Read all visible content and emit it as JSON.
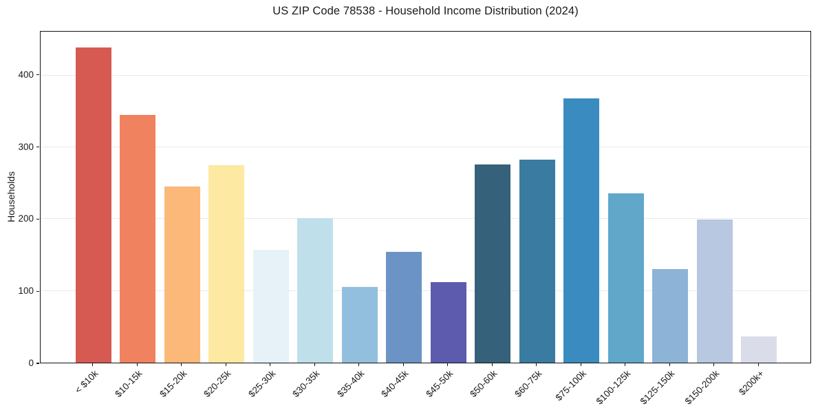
{
  "title": "US ZIP Code 78538 - Household Income Distribution (2024)",
  "chart_data": {
    "type": "bar",
    "title": "US ZIP Code 78538 - Household Income Distribution (2024)",
    "xlabel": "",
    "ylabel": "Households",
    "categories": [
      "< $10k",
      "$10-15k",
      "$15-20k",
      "$20-25k",
      "$25-30k",
      "$30-35k",
      "$35-40k",
      "$40-45k",
      "$45-50k",
      "$50-60k",
      "$60-75k",
      "$75-100k",
      "$100-125k",
      "$125-150k",
      "$150-200k",
      "$200k+"
    ],
    "values": [
      439,
      345,
      245,
      275,
      157,
      201,
      105,
      154,
      112,
      276,
      283,
      368,
      236,
      130,
      199,
      36
    ],
    "bar_colors": [
      "#d65a52",
      "#f0825f",
      "#fbb878",
      "#fde9a2",
      "#e6f2f8",
      "#bfe0eb",
      "#92bfdd",
      "#6b93c6",
      "#5c5bad",
      "#35617a",
      "#3a7ba1",
      "#398bc0",
      "#60a7ca",
      "#8db4d6",
      "#b7c8e0",
      "#dadcea"
    ],
    "yticks": [
      0,
      100,
      200,
      300,
      400
    ],
    "ylim": [
      0,
      461
    ],
    "grid": "horizontal",
    "grid_color": "#e9e9e9",
    "legend": "none",
    "bar_width_fraction": 0.8
  }
}
